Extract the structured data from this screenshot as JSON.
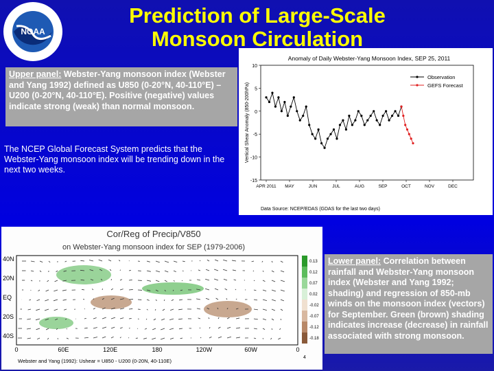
{
  "header": {
    "title_line1": "Prediction of Large-Scale",
    "title_line2": "Monsoon Circulation"
  },
  "upper_note": {
    "label": "Upper panel:",
    "text": " Webster-Yang monsoon index (Webster and Yang 1992) defined as U850 (0-20°N, 40-110°E) – U200 (0-20°N, 40-110°E). Positive (negative) values indicate strong (weak) than normal monsoon."
  },
  "forecast_note": "The NCEP Global Forecast System predicts that the Webster-Yang monsoon index will be trending down in the next two weeks.",
  "upper_figure": {
    "type": "line",
    "title": "Anomaly of Daily Webster-Yang Monsoon Index, SEP 25, 2011",
    "y_label": "Vertical Shear Anomaly (850-200hPa)",
    "ylim": [
      -15,
      10
    ],
    "yticks": [
      10,
      5,
      0,
      -5,
      -10,
      -15
    ],
    "categories": [
      "APR 2011",
      "MAY",
      "JUN",
      "JUL",
      "AUG",
      "SEP",
      "OCT",
      "NOV",
      "DEC"
    ],
    "source": "Data Source: NCEP/EDAS (GDAS for the last two days)",
    "series": [
      {
        "name": "Observation",
        "color": "#000000",
        "values": [
          3,
          2,
          4,
          1,
          3,
          0,
          2,
          -1,
          1,
          3,
          0,
          -2,
          -1,
          1,
          -3,
          -5,
          -6,
          -4,
          -7,
          -8,
          -6,
          -5,
          -4,
          -6,
          -3,
          -2,
          -4,
          -1,
          -3,
          -2,
          0,
          -1,
          -3,
          -2,
          -1,
          0,
          -2,
          -3,
          -1,
          0,
          -2,
          -1,
          0,
          -1,
          1
        ]
      },
      {
        "name": "GEFS Forecast",
        "color": "#e02020",
        "values": [
          1,
          -1,
          -3,
          -4,
          -5,
          -6,
          -7
        ]
      }
    ]
  },
  "lower_figure": {
    "title": "Cor/Reg of Precip/V850",
    "subtitle": "on Webster-Yang monsoon index for SEP (1979-2006)",
    "lat_labels": [
      "40N",
      "20N",
      "EQ",
      "20S",
      "40S"
    ],
    "lon_labels": [
      "0",
      "60E",
      "120E",
      "180",
      "120W",
      "60W",
      "0"
    ],
    "colorbar_labels": [
      "0.13",
      "0.12",
      "0.07",
      "0.02",
      "-0.02",
      "-0.07",
      "-0.12",
      "-0.18"
    ],
    "footer": "Webster and Yang (1992): Ushear = U850 - U200 (0-20N, 40-110E)",
    "vector_scale": "4"
  },
  "lower_note": {
    "label": "Lower panel:",
    "text": " Correlation between rainfall and Webster-Yang monsoon index (Webster and Yang 1992; shading) and regression of 850-mb winds on the monsoon index (vectors) for September. Green (brown) shading indicates increase (decrease) in rainfall associated with strong monsoon."
  }
}
